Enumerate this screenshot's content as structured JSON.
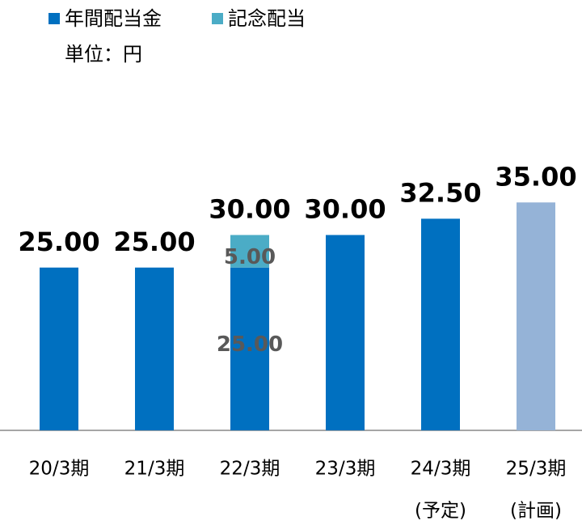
{
  "chart_data": {
    "type": "stacked_bar",
    "unit_label": "単位：円",
    "categories": [
      [
        "20/3期"
      ],
      [
        "21/3期"
      ],
      [
        "22/3期"
      ],
      [
        "23/3期"
      ],
      [
        "24/3期",
        "(予定)"
      ],
      [
        "25/3期",
        "(計画)"
      ]
    ],
    "series": [
      {
        "name": "年間配当金",
        "color": "#0070c0",
        "values": [
          25,
          25,
          25,
          30,
          32.5,
          35
        ],
        "point_colors": [
          "#0070c0",
          "#0070c0",
          "#0070c0",
          "#0070c0",
          "#0070c0",
          "#95b3d7"
        ],
        "value_labels": [
          null,
          null,
          "25.00",
          null,
          null,
          null
        ]
      },
      {
        "name": "記念配当",
        "color": "#4bacc6",
        "values": [
          null,
          null,
          5,
          null,
          null,
          null
        ],
        "value_labels": [
          null,
          null,
          "5.00",
          null,
          null,
          null
        ]
      }
    ],
    "totals": [
      25,
      25,
      30,
      30,
      32.5,
      35
    ],
    "total_labels": [
      "25.00",
      "25.00",
      "30.00",
      "30.00",
      "32.50",
      "35.00"
    ],
    "ylim": [
      0,
      40
    ],
    "legend": "top-left"
  }
}
